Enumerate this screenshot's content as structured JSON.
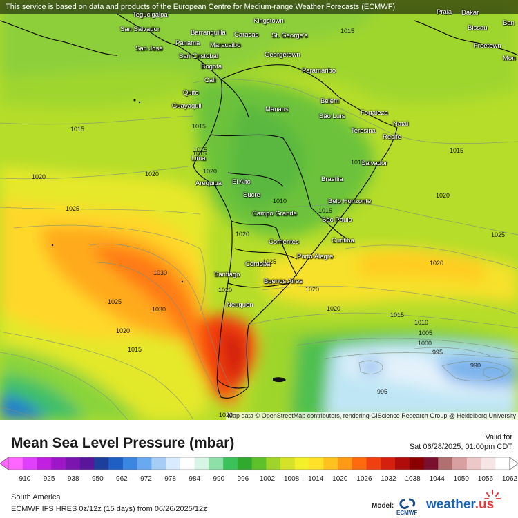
{
  "attribution_top": "This service is based on data and products of the European Centre for Medium-range Weather Forecasts (ECMWF)",
  "attribution_bottom": "Map data © OpenStreetMap contributors, rendering GIScience Research Group @ Heidelberg University",
  "cities": [
    {
      "name": "Tegucigalpa"
    },
    {
      "name": "San Salvador"
    },
    {
      "name": "San José"
    },
    {
      "name": "Panama"
    },
    {
      "name": "Barranquilla"
    },
    {
      "name": "Caracas"
    },
    {
      "name": "Maracaibo"
    },
    {
      "name": "San Cristóbal"
    },
    {
      "name": "Bogota"
    },
    {
      "name": "Cali"
    },
    {
      "name": "Quito"
    },
    {
      "name": "Guayaquil"
    },
    {
      "name": "Kingstown"
    },
    {
      "name": "St. George's"
    },
    {
      "name": "Georgetown"
    },
    {
      "name": "Paramaribo"
    },
    {
      "name": "Belém"
    },
    {
      "name": "São Luís"
    },
    {
      "name": "Fortaleza"
    },
    {
      "name": "Natal"
    },
    {
      "name": "Teresina"
    },
    {
      "name": "Recife"
    },
    {
      "name": "Manaus"
    },
    {
      "name": "Salvador"
    },
    {
      "name": "Brasília"
    },
    {
      "name": "Belo Horizonte"
    },
    {
      "name": "São Paulo"
    },
    {
      "name": "Curitiba"
    },
    {
      "name": "Porto Alegre"
    },
    {
      "name": "Campo Grande"
    },
    {
      "name": "Corrientes"
    },
    {
      "name": "Córdoba"
    },
    {
      "name": "Buenos Aires"
    },
    {
      "name": "Santiago"
    },
    {
      "name": "Neuquén"
    },
    {
      "name": "Lima"
    },
    {
      "name": "Arequipa"
    },
    {
      "name": "El Alto"
    },
    {
      "name": "Sucre"
    },
    {
      "name": "Praia"
    },
    {
      "name": "Dakar"
    },
    {
      "name": "Bissau"
    },
    {
      "name": "Freetown"
    },
    {
      "name": "Ban"
    },
    {
      "name": "Mon"
    }
  ],
  "isobar_labels": [
    "1015",
    "1015",
    "1015",
    "1015",
    "1015",
    "1015",
    "1015",
    "1015",
    "1020",
    "1020",
    "1020",
    "1020",
    "1020",
    "1020",
    "1020",
    "1020",
    "1020",
    "1025",
    "1025",
    "1025",
    "1030",
    "1030",
    "1010",
    "1010",
    "1005",
    "1000",
    "995",
    "990",
    "995",
    "1025",
    "1020",
    "1015",
    "1020",
    "1015"
  ],
  "legend": {
    "title": "Mean Sea Level Pressure (mbar)",
    "valid_label": "Valid for",
    "valid_time": "Sat 06/28/2025, 01:00pm CDT",
    "ticks": [
      "910",
      "925",
      "938",
      "950",
      "962",
      "972",
      "978",
      "984",
      "990",
      "996",
      "1002",
      "1008",
      "1014",
      "1020",
      "1026",
      "1032",
      "1038",
      "1044",
      "1050",
      "1056",
      "1062"
    ],
    "colors": [
      "#ff66ff",
      "#e040fb",
      "#c020e0",
      "#9d17c9",
      "#7a15b0",
      "#5a169a",
      "#1b3f9a",
      "#1f5fc4",
      "#3a86e0",
      "#6aa8f0",
      "#a6cdf5",
      "#d9ecff",
      "#ffffff",
      "#d6f5e4",
      "#8fe0a8",
      "#3cc25a",
      "#2faa2f",
      "#5ec02a",
      "#9ed528",
      "#d4e327",
      "#f3f02a",
      "#ffe12a",
      "#ffc11e",
      "#ff9a14",
      "#ff6a0e",
      "#f04010",
      "#d6200e",
      "#b00c0c",
      "#8a0000",
      "#7a1030",
      "#b07070",
      "#d8a0a0",
      "#ecc8c8",
      "#f7e4e4",
      "#ffffff"
    ]
  },
  "info": {
    "region": "South America",
    "model_run": "ECMWF IFS HRES 0z/12z (15 days) from 06/26/2025/12z",
    "model_label": "Model:",
    "ecmwf_text": "ECMWF",
    "brand": "weather",
    "brand_suffix": ".us"
  }
}
